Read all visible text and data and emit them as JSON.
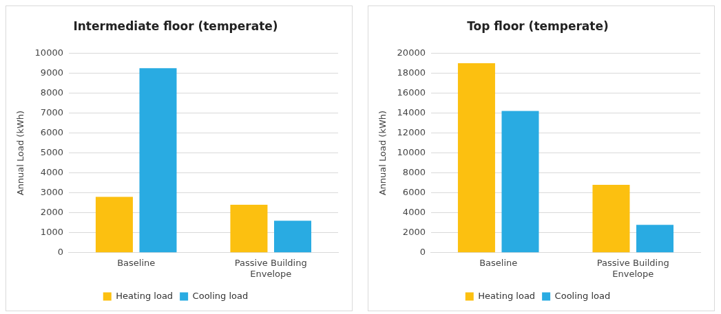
{
  "chart_data": [
    {
      "type": "bar",
      "title": "Intermediate floor (temperate)",
      "ylabel": "Annual Load (kWh)",
      "categories": [
        "Baseline",
        "Passive Building Envelope"
      ],
      "series": [
        {
          "name": "Heating load",
          "color": "#fcc010",
          "values": [
            2800,
            2400
          ]
        },
        {
          "name": "Cooling load",
          "color": "#29abe2",
          "values": [
            9250,
            1600
          ]
        }
      ],
      "ylim": [
        0,
        10000
      ],
      "yticks": [
        0,
        1000,
        2000,
        3000,
        4000,
        5000,
        6000,
        7000,
        8000,
        9000,
        10000
      ],
      "grid": "y",
      "legend": "bottom"
    },
    {
      "type": "bar",
      "title": "Top floor (temperate)",
      "ylabel": "Annual Load (kWh)",
      "categories": [
        "Baseline",
        "Passive Building Envelope"
      ],
      "series": [
        {
          "name": "Heating load",
          "color": "#fcc010",
          "values": [
            19000,
            6800
          ]
        },
        {
          "name": "Cooling load",
          "color": "#29abe2",
          "values": [
            14200,
            2800
          ]
        }
      ],
      "ylim": [
        0,
        20000
      ],
      "yticks": [
        0,
        2000,
        4000,
        6000,
        8000,
        10000,
        12000,
        14000,
        16000,
        18000,
        20000
      ],
      "grid": "y",
      "legend": "bottom"
    }
  ]
}
